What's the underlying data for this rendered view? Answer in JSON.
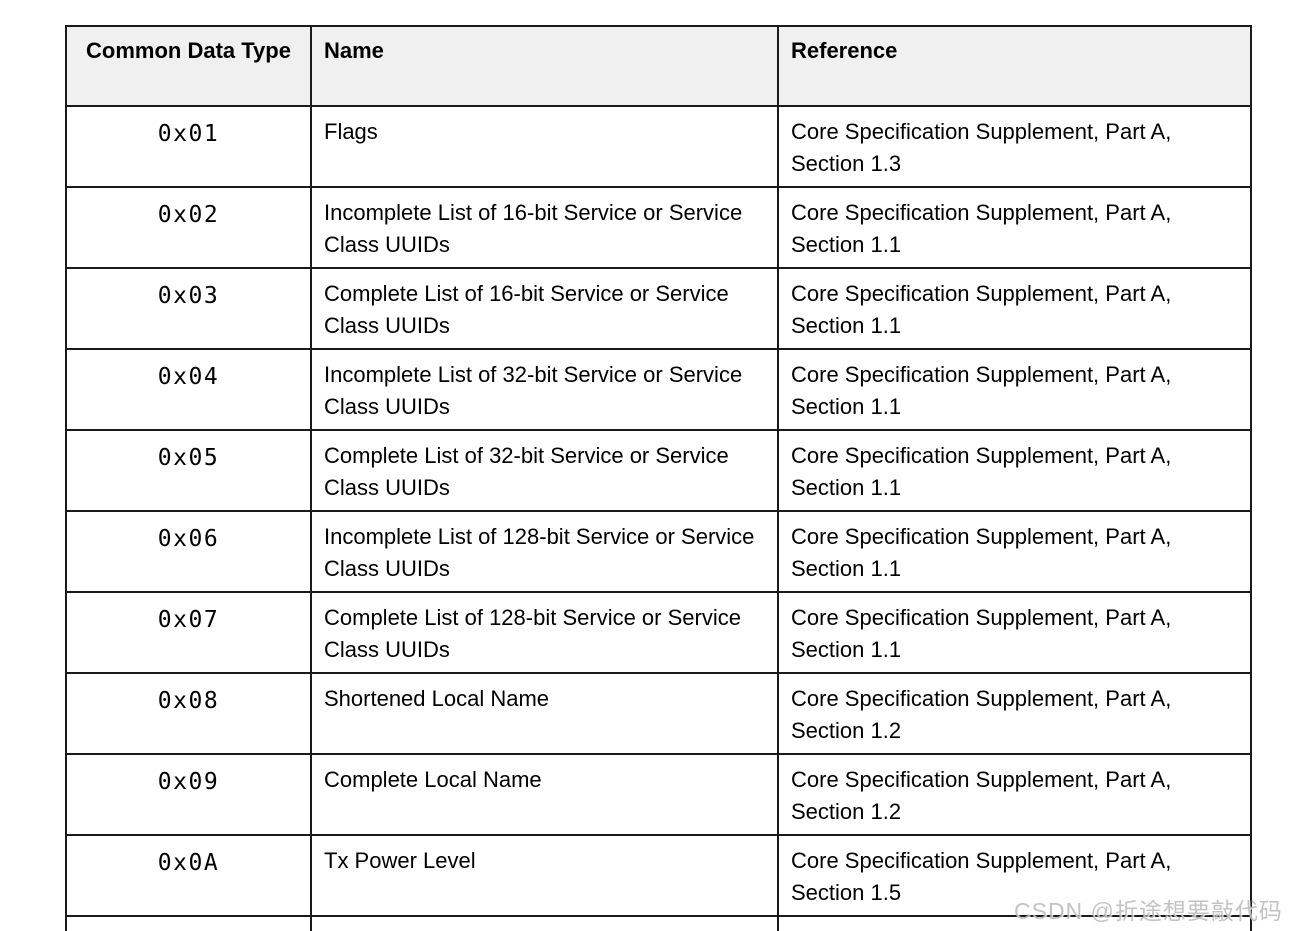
{
  "colors": {
    "header_bg": "#f0f0f0",
    "border": "#1a1a1a",
    "text": "#000000",
    "watermark_gray": "#b2b2b2"
  },
  "table": {
    "columns": [
      {
        "id": "type",
        "label": "Common Data Type"
      },
      {
        "id": "name",
        "label": "Name"
      },
      {
        "id": "reference",
        "label": "Reference"
      }
    ],
    "rows": [
      {
        "type": "0x01",
        "name": "Flags",
        "reference": "Core Specification Supplement, Part A, Section 1.3"
      },
      {
        "type": "0x02",
        "name": "Incomplete List of 16-bit Service or Service Class UUIDs",
        "reference": "Core Specification Supplement, Part A, Section 1.1"
      },
      {
        "type": "0x03",
        "name": "Complete List of 16-bit Service or Service Class UUIDs",
        "reference": "Core Specification Supplement, Part A, Section 1.1"
      },
      {
        "type": "0x04",
        "name": "Incomplete List of 32-bit Service or Service Class UUIDs",
        "reference": "Core Specification Supplement, Part A, Section 1.1"
      },
      {
        "type": "0x05",
        "name": "Complete List of 32-bit Service or Service Class UUIDs",
        "reference": "Core Specification Supplement, Part A, Section 1.1"
      },
      {
        "type": "0x06",
        "name": "Incomplete List of 128-bit Service or Service Class UUIDs",
        "reference": "Core Specification Supplement, Part A, Section 1.1"
      },
      {
        "type": "0x07",
        "name": "Complete List of 128-bit Service or Service Class UUIDs",
        "reference": "Core Specification Supplement, Part A, Section 1.1"
      },
      {
        "type": "0x08",
        "name": "Shortened Local Name",
        "reference": "Core Specification Supplement, Part A, Section 1.2"
      },
      {
        "type": "0x09",
        "name": "Complete Local Name",
        "reference": "Core Specification Supplement, Part A, Section 1.2"
      },
      {
        "type": "0x0A",
        "name": "Tx Power Level",
        "reference": "Core Specification Supplement, Part A, Section 1.5"
      }
    ],
    "partial_row_visible": true
  },
  "watermark": {
    "text": "CSDN @折途想要敲代码"
  }
}
